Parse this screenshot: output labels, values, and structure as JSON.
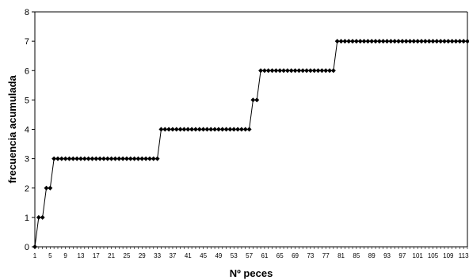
{
  "chart_data": {
    "type": "line",
    "xlabel": "Nº peces",
    "ylabel": "frecuencia acumulada",
    "xlim": [
      1,
      114
    ],
    "ylim": [
      0,
      8
    ],
    "y_ticks": [
      0,
      1,
      2,
      3,
      4,
      5,
      6,
      7,
      8
    ],
    "x_tick_labels": [
      1,
      5,
      9,
      13,
      17,
      21,
      25,
      29,
      33,
      37,
      41,
      45,
      49,
      53,
      57,
      61,
      65,
      69,
      73,
      77,
      81,
      85,
      89,
      93,
      97,
      101,
      105,
      109,
      113
    ],
    "marker": "diamond",
    "line_color": "#000000",
    "grid": false,
    "series": [
      {
        "steps": [
          {
            "x_from": 1,
            "x_to": 1,
            "y": 0
          },
          {
            "x_from": 2,
            "x_to": 3,
            "y": 1
          },
          {
            "x_from": 4,
            "x_to": 5,
            "y": 2
          },
          {
            "x_from": 6,
            "x_to": 33,
            "y": 3
          },
          {
            "x_from": 34,
            "x_to": 57,
            "y": 4
          },
          {
            "x_from": 58,
            "x_to": 59,
            "y": 5
          },
          {
            "x_from": 60,
            "x_to": 79,
            "y": 6
          },
          {
            "x_from": 80,
            "x_to": 114,
            "y": 7
          }
        ]
      }
    ]
  }
}
